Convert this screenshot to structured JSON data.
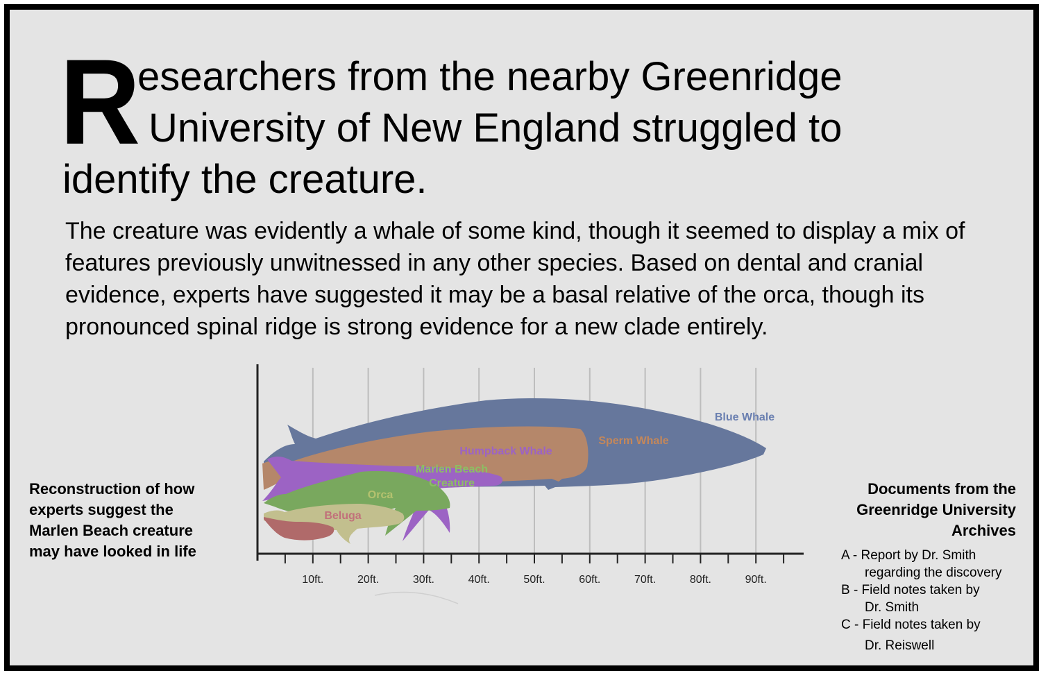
{
  "headline": {
    "dropcap": "R",
    "line1": "esearchers from the nearby Greenridge",
    "line2": "University of New England struggled to",
    "line3": "identify the creature."
  },
  "body": "The creature was evidently a whale of some kind, though it seemed to display a mix of features previously unwitnessed in any other species. Based on dental and cranial evidence, experts have suggested it may be a basal relative of the orca, though its pronounced spinal ridge is strong evidence for a new clade entirely.",
  "left_caption": "Reconstruction of how experts suggest the Marlen Beach creature may have looked in life",
  "archives": {
    "title": "Documents from the Greenridge University Archives",
    "items": [
      {
        "line1": "A - Report by Dr. Smith",
        "line2": "regarding the discovery"
      },
      {
        "line1": "B - Field notes taken by",
        "line2": "Dr. Smith"
      },
      {
        "line1": "C - Field notes taken by",
        "line2": "Dr. Reiswell"
      }
    ]
  },
  "chart_data": {
    "type": "size-comparison",
    "x_unit": "ft",
    "xlim": [
      0,
      98
    ],
    "tick_labels": [
      "10ft.",
      "20ft.",
      "30ft.",
      "40ft.",
      "50ft.",
      "60ft.",
      "70ft.",
      "80ft.",
      "90ft."
    ],
    "species": [
      {
        "name": "Blue Whale",
        "length_ft": 92,
        "color": "#66779c",
        "label_color": "#6a7fb0"
      },
      {
        "name": "Sperm Whale",
        "length_ft": 60,
        "color": "#b5876a",
        "label_color": "#c4875a"
      },
      {
        "name": "Humpback Whale",
        "length_ft": 44,
        "color": "#9c63c4",
        "label_color": "#9c63c4"
      },
      {
        "name": "Marlen Beach Creature",
        "length_ft": 44,
        "color": "#9c63c4",
        "label_color": "#8cbf63"
      },
      {
        "name": "Orca",
        "length_ft": 34,
        "color": "#79a85e",
        "label_color": "#b5c26f"
      },
      {
        "name": "Beluga",
        "length_ft": 19,
        "color": "#c2bf8e",
        "label_color": "#c1707a"
      },
      {
        "name": "",
        "length_ft": 15,
        "color": "#b06a6a",
        "label_color": ""
      }
    ]
  }
}
